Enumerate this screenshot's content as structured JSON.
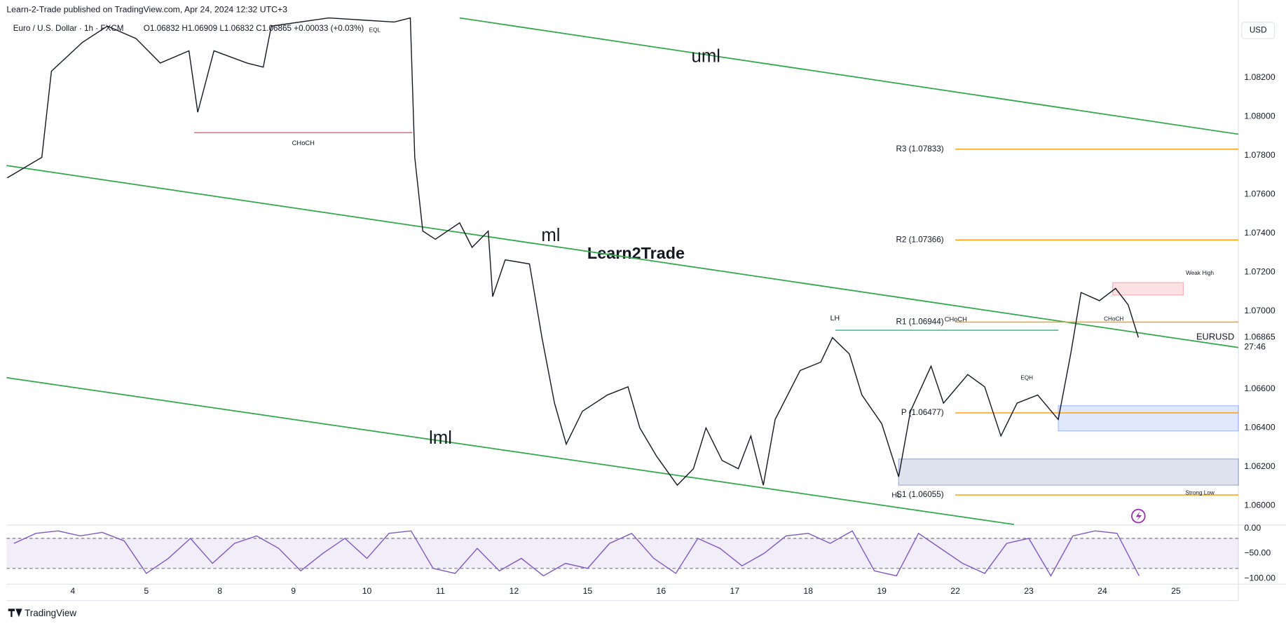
{
  "header": "Learn-2-Trade published on TradingView.com, Apr 24, 2024 12:32 UTC+3",
  "footer": "TradingView",
  "chart_data": [
    {
      "type": "line",
      "symbol_line": "Euro / U.S. Dollar · 1h · FXCM",
      "ohlc": "O1.06832  H1.06909  L1.06832  C1.06865  +0.00033 (+0.03%)",
      "currency": "USD",
      "watermark": "Learn2Trade",
      "price_tag": "1.06865",
      "countdown": "27:46",
      "x": [
        -0.89,
        -0.42,
        -0.29,
        0.13,
        0.47,
        0.86,
        1.19,
        1.58,
        1.7,
        1.92,
        2.37,
        2.59,
        2.7,
        3.48,
        4.37,
        4.59,
        4.65,
        4.76,
        4.93,
        5.26,
        5.43,
        5.65,
        5.71,
        5.88,
        6.21,
        6.38,
        6.55,
        6.71,
        6.93,
        7.27,
        7.55,
        7.71,
        7.94,
        8.22,
        8.44,
        8.61,
        8.83,
        9.05,
        9.22,
        9.39,
        9.55,
        9.89,
        10.17,
        10.33,
        10.56,
        10.73,
        11.0,
        11.23,
        11.39,
        11.67,
        11.84,
        12.17,
        12.4,
        12.62,
        12.84,
        13.12,
        13.4,
        13.57,
        13.71,
        13.96,
        14.18,
        14.35,
        14.49
      ],
      "series": [
        {
          "name": "EURUSD",
          "color": "#131722",
          "values": [
            1.07686,
            1.07791,
            1.08234,
            1.08382,
            1.08466,
            1.08402,
            1.08276,
            1.08339,
            1.08023,
            1.08339,
            1.08276,
            1.08255,
            1.08466,
            1.08508,
            1.08487,
            1.08508,
            1.07791,
            1.07412,
            1.0737,
            1.07454,
            1.07328,
            1.07412,
            1.07075,
            1.07264,
            1.07243,
            1.06864,
            1.06527,
            1.06316,
            1.06485,
            1.06569,
            1.06611,
            1.064,
            1.06253,
            1.06105,
            1.0619,
            1.064,
            1.06232,
            1.0619,
            1.06358,
            1.06105,
            1.06443,
            1.06695,
            1.06738,
            1.06864,
            1.0678,
            1.06569,
            1.06421,
            1.06148,
            1.06485,
            1.06717,
            1.06527,
            1.06674,
            1.06611,
            1.06358,
            1.06527,
            1.06569,
            1.06443,
            1.0678,
            1.07096,
            1.07054,
            1.07117,
            1.07033,
            1.06865
          ]
        }
      ],
      "xlim": [
        -0.9,
        15.85
      ],
      "xticks": [
        {
          "value": 0,
          "label": "4"
        },
        {
          "value": 1,
          "label": "5"
        },
        {
          "value": 2,
          "label": "8"
        },
        {
          "value": 3,
          "label": "9"
        },
        {
          "value": 4,
          "label": "10"
        },
        {
          "value": 5,
          "label": "11"
        },
        {
          "value": 6,
          "label": "12"
        },
        {
          "value": 7,
          "label": "15"
        },
        {
          "value": 8,
          "label": "16"
        },
        {
          "value": 9,
          "label": "17"
        },
        {
          "value": 10,
          "label": "18"
        },
        {
          "value": 11,
          "label": "19"
        },
        {
          "value": 12,
          "label": "22"
        },
        {
          "value": 13,
          "label": "23"
        },
        {
          "value": 14,
          "label": "24"
        },
        {
          "value": 15,
          "label": "25"
        }
      ],
      "ylim": [
        1.059,
        1.086
      ],
      "yticks": [
        {
          "value": 1.082,
          "label": "1.08200"
        },
        {
          "value": 1.08,
          "label": "1.08000"
        },
        {
          "value": 1.078,
          "label": "1.07800"
        },
        {
          "value": 1.076,
          "label": "1.07600"
        },
        {
          "value": 1.074,
          "label": "1.07400"
        },
        {
          "value": 1.072,
          "label": "1.07200"
        },
        {
          "value": 1.07,
          "label": "1.07000"
        },
        {
          "value": 1.066,
          "label": "1.06600"
        },
        {
          "value": 1.064,
          "label": "1.06400"
        },
        {
          "value": 1.062,
          "label": "1.06200"
        },
        {
          "value": 1.06,
          "label": "1.06000"
        }
      ],
      "channel": [
        {
          "name": "uml",
          "color": "#2ea84a",
          "x": [
            5.26,
            15.85
          ],
          "values": [
            1.08508,
            1.0791
          ]
        },
        {
          "name": "ml",
          "color": "#2ea84a",
          "x": [
            -0.9,
            15.85
          ],
          "values": [
            1.07749,
            1.06813
          ]
        },
        {
          "name": "lml",
          "color": "#2ea84a",
          "x": [
            -0.9,
            12.8
          ],
          "values": [
            1.06658,
            1.05903
          ]
        }
      ],
      "pivots": [
        {
          "label": "R3 (1.07833)",
          "value": 1.07833,
          "x": [
            12.0,
            15.85
          ]
        },
        {
          "label": "R2 (1.07366)",
          "value": 1.07366,
          "x": [
            12.0,
            15.85
          ]
        },
        {
          "label": "R1 (1.06944)",
          "value": 1.06944,
          "x": [
            12.0,
            15.85
          ]
        },
        {
          "label": "P (1.06477)",
          "value": 1.06477,
          "x": [
            12.0,
            15.85
          ]
        },
        {
          "label": "S1 (1.06055)",
          "value": 1.06055,
          "x": [
            12.0,
            15.85
          ]
        }
      ],
      "pivot_color": "#ff9800",
      "structure": [
        {
          "label": "CHoCH",
          "value": 1.07918,
          "x": [
            1.65,
            4.62
          ],
          "color": "#f23645"
        },
        {
          "label": "CHoCH",
          "value": 1.06902,
          "x": [
            10.37,
            13.4
          ],
          "color": "#089981"
        }
      ],
      "zones": [
        {
          "x": [
            14.14,
            15.1
          ],
          "y": [
            1.07083,
            1.07147
          ],
          "color": "#f23645"
        },
        {
          "x": [
            13.4,
            15.85
          ],
          "y": [
            1.06384,
            1.06514
          ],
          "color": "#2962ff"
        },
        {
          "x": [
            11.23,
            15.85
          ],
          "y": [
            1.06105,
            1.0624
          ],
          "color": "#1e3a8a"
        }
      ],
      "annotations": [
        {
          "text": "LH",
          "color": "#f23645"
        },
        {
          "text": "EQL",
          "color": "#089981"
        },
        {
          "text": "EQH",
          "color": "#089981"
        },
        {
          "text": "HL",
          "color": "#089981"
        },
        {
          "text": "Weak High",
          "color": "#f23645"
        },
        {
          "text": "Strong Low",
          "color": "#089981"
        },
        {
          "text": "CHoCH",
          "color": "#f23645"
        }
      ]
    },
    {
      "type": "line",
      "x": [
        -0.8,
        -0.5,
        -0.2,
        0.1,
        0.4,
        0.7,
        1.0,
        1.3,
        1.6,
        1.9,
        2.2,
        2.5,
        2.8,
        3.1,
        3.4,
        3.7,
        4.0,
        4.3,
        4.6,
        4.9,
        5.2,
        5.5,
        5.8,
        6.1,
        6.4,
        6.7,
        7.0,
        7.3,
        7.6,
        7.9,
        8.2,
        8.5,
        8.8,
        9.1,
        9.4,
        9.7,
        10.0,
        10.3,
        10.6,
        10.9,
        11.2,
        11.5,
        11.8,
        12.1,
        12.4,
        12.7,
        13.0,
        13.3,
        13.6,
        13.9,
        14.2,
        14.5
      ],
      "series": [
        {
          "color": "#7e57c2",
          "values": [
            -30,
            -10,
            -5,
            -15,
            -8,
            -25,
            -90,
            -60,
            -20,
            -70,
            -30,
            -15,
            -40,
            -85,
            -50,
            -20,
            -60,
            -10,
            -5,
            -80,
            -90,
            -40,
            -85,
            -60,
            -95,
            -70,
            -80,
            -30,
            -10,
            -60,
            -90,
            -20,
            -40,
            -75,
            -50,
            -15,
            -10,
            -30,
            -5,
            -85,
            -95,
            -10,
            -40,
            -70,
            -90,
            -30,
            -20,
            -95,
            -15,
            -5,
            -10,
            -95
          ]
        }
      ],
      "xlim": [
        -0.9,
        15.85
      ],
      "ylim": [
        -111.5,
        6.6
      ],
      "yticks": [
        {
          "value": 0,
          "label": "0.00"
        },
        {
          "value": -50,
          "label": "−50.00"
        },
        {
          "value": -100,
          "label": "−100.00"
        }
      ],
      "bands": [
        -20,
        -80
      ]
    }
  ]
}
